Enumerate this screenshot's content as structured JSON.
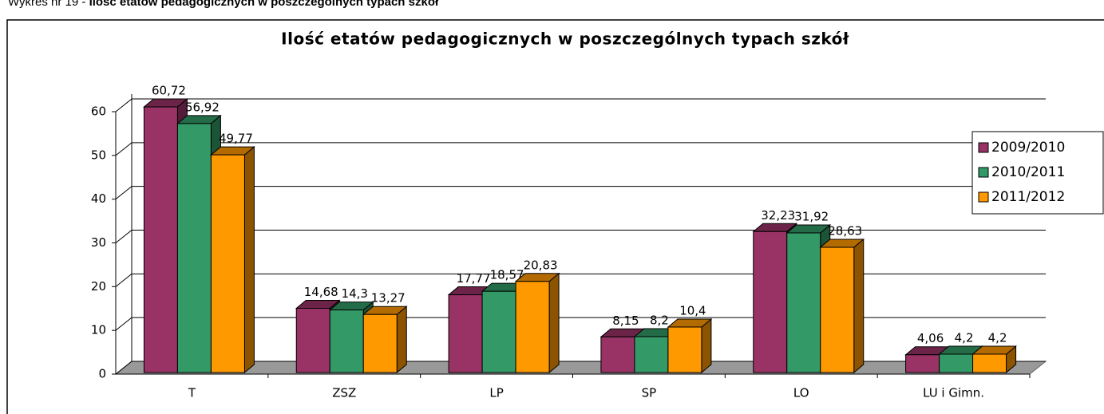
{
  "caption": {
    "prefix": "Wykres nr 19 - ",
    "title": "Ilość etatów pedagogicznych w poszczególnych typach szkół"
  },
  "chart_data": {
    "type": "bar3d",
    "title": "Ilość etatów pedagogicznych w poszczególnych typach szkół",
    "categories": [
      "T",
      "ZSZ",
      "LP",
      "SP",
      "LO",
      "LU i Gimn."
    ],
    "series": [
      {
        "name": "2009/2010",
        "color": "#993366",
        "values": [
          60.72,
          14.68,
          17.77,
          8.15,
          32.23,
          4.06
        ],
        "value_labels": [
          "60,72",
          "14,68",
          "17,77",
          "8,15",
          "32,23",
          "4,06"
        ]
      },
      {
        "name": "2010/2011",
        "color": "#339966",
        "values": [
          56.92,
          14.3,
          18.57,
          8.2,
          31.92,
          4.2
        ],
        "value_labels": [
          "56,92",
          "14,3",
          "18,57",
          "8,2",
          "31,92",
          "4,2"
        ]
      },
      {
        "name": "2011/2012",
        "color": "#ff9900",
        "values": [
          49.77,
          13.27,
          20.83,
          10.4,
          28.63,
          4.2
        ],
        "value_labels": [
          "49,77",
          "13,27",
          "20,83",
          "10,4",
          "28,63",
          "4,2"
        ]
      }
    ],
    "ylim": [
      0,
      60
    ],
    "yticks": [
      0,
      10,
      20,
      30,
      40,
      50,
      60
    ],
    "grid": true,
    "legend": "right"
  }
}
